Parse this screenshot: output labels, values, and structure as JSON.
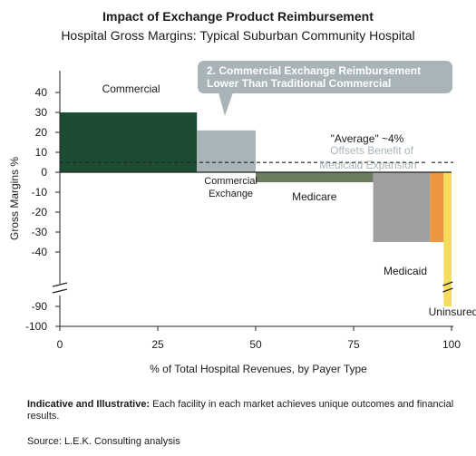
{
  "chart_data": {
    "type": "bar",
    "title": "Impact of Exchange Product Reimbursement",
    "subtitle": "Hospital Gross Margins: Typical Suburban Community Hospital",
    "xlabel": "% of Total Hospital Revenues, by Payer Type",
    "ylabel": "Gross Margins %",
    "xlim": [
      0,
      100
    ],
    "x_ticks": [
      "0",
      "25",
      "50",
      "75",
      "100"
    ],
    "y_ticks": [
      "40",
      "30",
      "20",
      "10",
      "0",
      "-10",
      "-20",
      "-30",
      "-40",
      "-90",
      "-100"
    ],
    "y_axis_break": "between -40 and -90",
    "series": [
      {
        "name": "Commercial",
        "x_start": 0,
        "x_end": 35,
        "value": 30,
        "color": "#1c4d32"
      },
      {
        "name": "Commercial Exchange",
        "x_start": 35,
        "x_end": 50,
        "value": 21,
        "color": "#a9b4b8"
      },
      {
        "name": "Medicare",
        "x_start": 50,
        "x_end": 80,
        "value": -5,
        "color": "#6a7d5f"
      },
      {
        "name": "Medicaid",
        "x_start": 80,
        "x_end": 94.5,
        "value": -35,
        "color": "#a0a0a0"
      },
      {
        "name": "",
        "x_start": 94.5,
        "x_end": 98,
        "value": -35,
        "color": "#ec9640"
      },
      {
        "name": "Uninsured",
        "x_start": 98,
        "x_end": 100,
        "value": -90,
        "color": "#f5dc5a"
      }
    ],
    "average_line": {
      "value": 4,
      "label": "\"Average\" ~4%"
    },
    "annotations": {
      "callout": "2. Commercial Exchange Reimbursement Lower Than Traditional Commercial",
      "offsets": "Offsets Benefit of Medicaid Expansion"
    }
  },
  "footer": {
    "note_bold": "Indicative and Illustrative:",
    "note_text": " Each facility in each market achieves unique outcomes and financial results.",
    "source": "Source: L.E.K. Consulting analysis"
  }
}
